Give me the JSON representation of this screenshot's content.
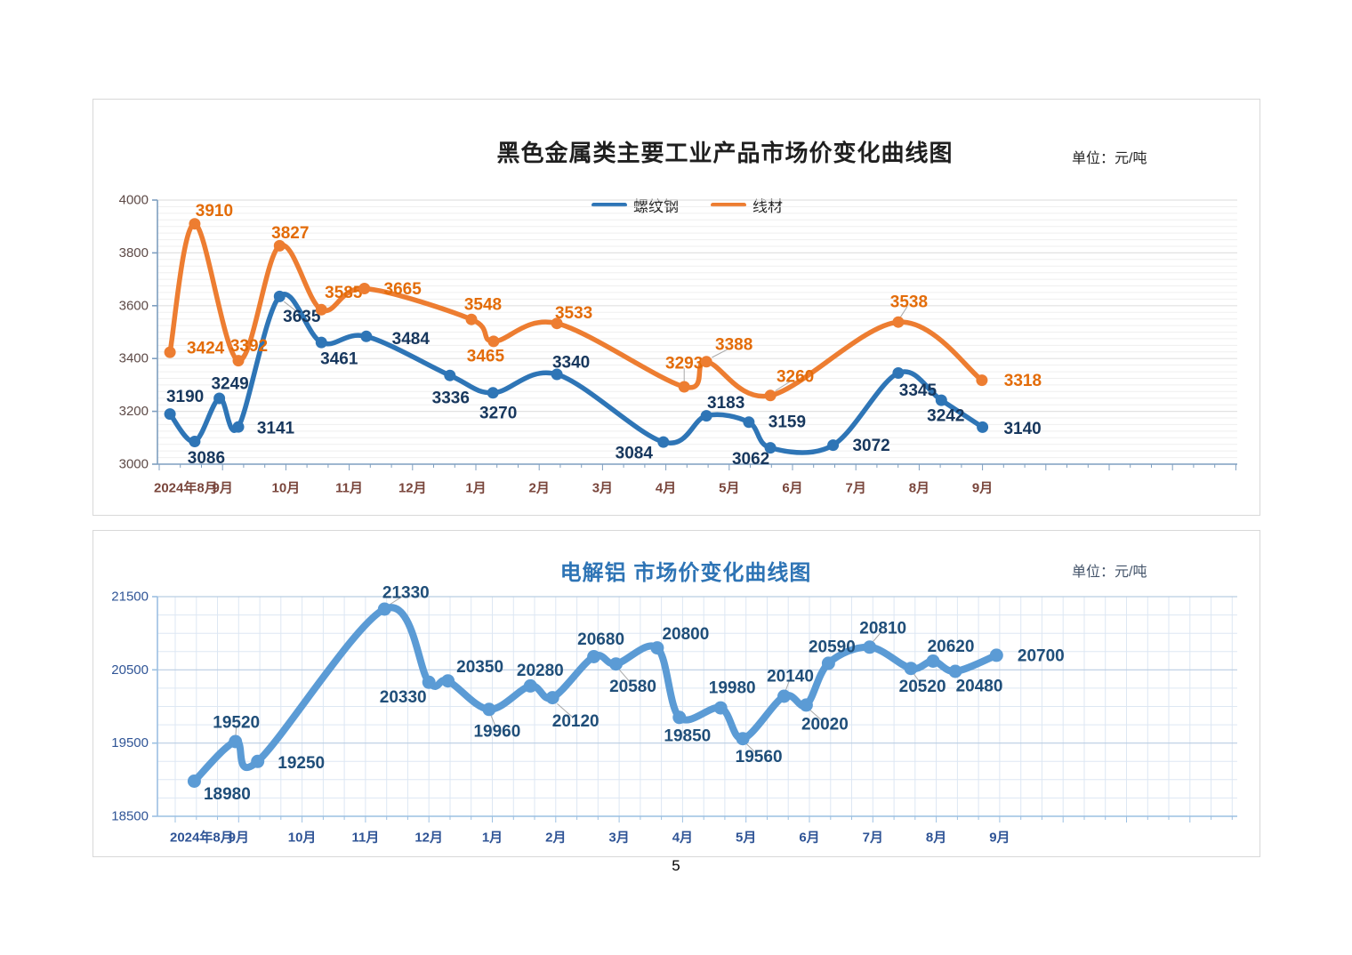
{
  "page": {
    "number": "5"
  },
  "charts": [
    {
      "title": "黑色金属类主要工业产品市场价变化曲线图",
      "unit_label": "单位：元/吨",
      "legend": [
        {
          "label": "螺纹钢",
          "color": "#2e75b6"
        },
        {
          "label": "线材",
          "color": "#ed7d31"
        }
      ],
      "chart_data": {
        "type": "line",
        "title": "黑色金属类主要工业产品市场价变化曲线图",
        "ylabel": "元/吨",
        "ylim": [
          3000,
          4000
        ],
        "y_ticks": [
          3000,
          3200,
          3400,
          3600,
          3800,
          4000
        ],
        "x_tick_labels": [
          "2024年8月",
          "9月",
          "10月",
          "11月",
          "12月",
          "1月",
          "2月",
          "3月",
          "4月",
          "5月",
          "6月",
          "7月",
          "8月",
          "9月"
        ],
        "x_unit": "months since 2024-08",
        "grid": "horizontal-minor",
        "legend_position": "top-center",
        "series": [
          {
            "id": "rebar",
            "name": "螺纹钢",
            "color": "#2e75b6",
            "label_color": "#17375d",
            "x": [
              0.17,
              0.56,
              0.95,
              1.25,
              1.9,
              2.56,
              3.27,
              4.59,
              5.27,
              6.28,
              7.96,
              8.64,
              9.31,
              9.65,
              10.64,
              11.67,
              12.35,
              13.0
            ],
            "values": [
              3190,
              3086,
              3249,
              3141,
              3635,
              3461,
              3484,
              3336,
              3270,
              3340,
              3084,
              3183,
              3159,
              3062,
              3072,
              3345,
              3242,
              3140
            ],
            "label_offsets": [
              [
                17,
                -19
              ],
              [
                13,
                19
              ],
              [
                12,
                -16
              ],
              [
                42,
                2
              ],
              [
                25,
                23
              ],
              [
                20,
                19
              ],
              [
                50,
                3
              ],
              [
                1,
                26
              ],
              [
                6,
                23
              ],
              [
                16,
                -13
              ],
              [
                -33,
                13
              ],
              [
                22,
                -14
              ],
              [
                43,
                0
              ],
              [
                -22,
                13
              ],
              [
                43,
                1
              ],
              [
                22,
                20
              ],
              [
                5,
                18
              ],
              [
                45,
                2
              ]
            ],
            "leaders": [
              0,
              0,
              0,
              0,
              1,
              0,
              0,
              0,
              0,
              0,
              0,
              0,
              0,
              0,
              0,
              0,
              0,
              0
            ]
          },
          {
            "id": "wire_rod",
            "name": "线材",
            "color": "#ed7d31",
            "label_color": "#e36c09",
            "x": [
              0.17,
              0.56,
              1.25,
              1.9,
              2.56,
              3.24,
              4.93,
              5.28,
              6.28,
              8.29,
              8.64,
              9.65,
              11.67,
              12.99
            ],
            "values": [
              3424,
              3910,
              3392,
              3827,
              3585,
              3665,
              3548,
              3465,
              3533,
              3293,
              3388,
              3260,
              3538,
              3318
            ],
            "label_offsets": [
              [
                40,
                -4
              ],
              [
                22,
                -14
              ],
              [
                12,
                -16
              ],
              [
                12,
                -14
              ],
              [
                25,
                -19
              ],
              [
                43,
                1
              ],
              [
                13,
                -16
              ],
              [
                -9,
                17
              ],
              [
                19,
                -11
              ],
              [
                0,
                -26
              ],
              [
                31,
                -19
              ],
              [
                28,
                -21
              ],
              [
                12,
                -22
              ],
              [
                46,
                1
              ]
            ],
            "leaders": [
              0,
              0,
              1,
              0,
              0,
              0,
              0,
              0,
              0,
              1,
              1,
              1,
              1,
              0
            ]
          }
        ]
      }
    },
    {
      "title": "电解铝 市场价变化曲线图",
      "unit_label": "单位：元/吨",
      "legend": [],
      "chart_data": {
        "type": "line",
        "title": "电解铝 市场价变化曲线图",
        "ylabel": "元/吨",
        "ylim": [
          18500,
          21500
        ],
        "y_ticks": [
          18500,
          19500,
          20500,
          21500
        ],
        "x_tick_labels": [
          "2024年8月",
          "9月",
          "10月",
          "11月",
          "12月",
          "1月",
          "2月",
          "3月",
          "4月",
          "5月",
          "6月",
          "7月",
          "8月",
          "9月"
        ],
        "x_unit": "months since 2024-08",
        "grid": "mesh-minor",
        "legend_position": "none",
        "series": [
          {
            "id": "aluminum",
            "name": "电解铝",
            "color": "#5b9bd5",
            "label_color": "#1f4e79",
            "x": [
              0.3,
              0.95,
              1.3,
              3.3,
              4.0,
              4.3,
              4.95,
              5.6,
              5.95,
              6.6,
              6.95,
              7.6,
              7.95,
              8.6,
              8.95,
              9.6,
              9.95,
              10.3,
              10.95,
              11.6,
              11.95,
              12.3,
              12.95
            ],
            "values": [
              18980,
              19520,
              19250,
              21330,
              20330,
              20350,
              19960,
              20280,
              20120,
              20680,
              20580,
              20800,
              19850,
              19980,
              19560,
              20140,
              20020,
              20590,
              20810,
              20520,
              20620,
              20480,
              20700
            ],
            "label_offsets": [
              [
                37,
                15
              ],
              [
                1,
                -21
              ],
              [
                49,
                2
              ],
              [
                24,
                -18
              ],
              [
                -29,
                17
              ],
              [
                36,
                -15
              ],
              [
                9,
                25
              ],
              [
                11,
                -17
              ],
              [
                26,
                27
              ],
              [
                8,
                -19
              ],
              [
                19,
                26
              ],
              [
                32,
                -15
              ],
              [
                9,
                21
              ],
              [
                13,
                -22
              ],
              [
                18,
                21
              ],
              [
                7,
                -22
              ],
              [
                21,
                22
              ],
              [
                4,
                -18
              ],
              [
                15,
                -21
              ],
              [
                13,
                21
              ],
              [
                20,
                -16
              ],
              [
                27,
                17
              ],
              [
                50,
                1
              ]
            ],
            "leaders": [
              0,
              1,
              0,
              1,
              0,
              0,
              1,
              0,
              1,
              0,
              1,
              0,
              0,
              0,
              1,
              1,
              1,
              0,
              1,
              1,
              0,
              0,
              0
            ]
          }
        ]
      }
    }
  ]
}
